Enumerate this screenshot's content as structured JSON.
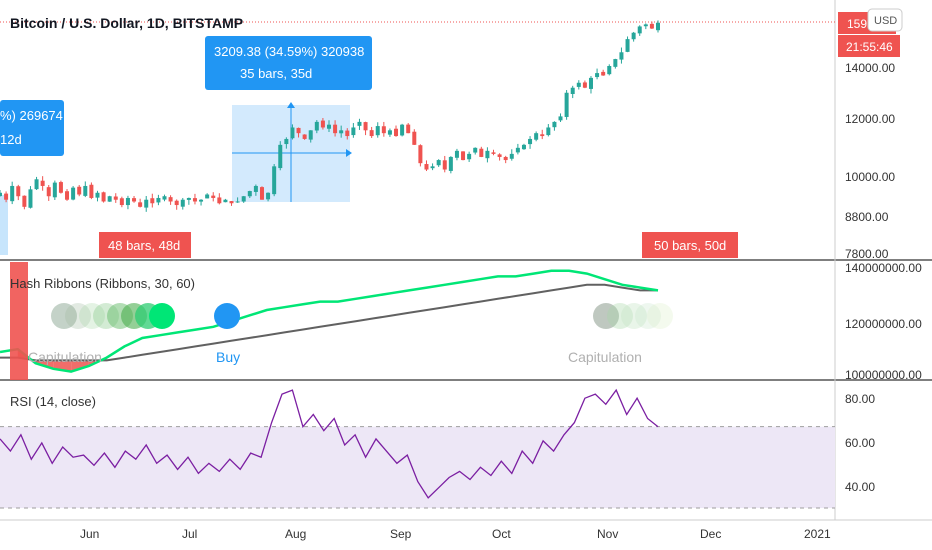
{
  "header": {
    "title": "Bitcoin / U.S. Dollar, 1D, BITSTAMP",
    "currency": "USD"
  },
  "price_badge": {
    "value": "1598",
    "countdown": "21:55:46"
  },
  "colors": {
    "up": "#26a69a",
    "down": "#ef5350",
    "accent": "#2196f3",
    "ribbon_green": "#00e676",
    "ribbon_gray": "#616161",
    "rsi_line": "#7b1fa2",
    "rsi_band": "#ede7f6"
  },
  "measure_boxes": [
    {
      "line1": "3209.38 (34.59%) 320938",
      "line2": "35 bars, 35d"
    },
    {
      "line1": "%) 269674",
      "line2": "12d"
    }
  ],
  "bar_labels": [
    {
      "text": "48 bars, 48d"
    },
    {
      "text": "50 bars, 50d"
    }
  ],
  "hash_ribbons": {
    "title": "Hash Ribbons (Ribbons, 30, 60)",
    "labels": [
      "Capitulation",
      "Buy",
      "Capitulation"
    ],
    "ticks": [
      "140000000.00",
      "120000000.00",
      "100000000.00"
    ],
    "chart_data": {
      "type": "line",
      "series": [
        {
          "values": [
            110,
            111,
            106,
            104,
            103,
            105,
            108,
            112,
            115,
            116,
            117,
            118,
            119,
            121,
            123,
            125,
            126,
            127,
            128,
            128,
            129,
            130,
            131,
            132,
            133,
            134,
            135,
            136,
            137,
            137,
            138,
            139,
            139,
            138,
            136,
            134,
            133,
            132
          ]
        },
        {
          "values": [
            108,
            108,
            107,
            107,
            107,
            107,
            107,
            108,
            109,
            110,
            111,
            112,
            113,
            114,
            115,
            116,
            117,
            118,
            119,
            120,
            121,
            122,
            123,
            124,
            125,
            126,
            127,
            128,
            129,
            130,
            131,
            132,
            133,
            134,
            134,
            133,
            132,
            132
          ]
        }
      ],
      "ylim": [
        100,
        140
      ]
    }
  },
  "rsi": {
    "title": "RSI (14, close)",
    "ticks": [
      "80.00",
      "60.00",
      "40.00"
    ],
    "chart_data": {
      "type": "line",
      "values": [
        64,
        58,
        66,
        54,
        62,
        52,
        60,
        55,
        56,
        51,
        57,
        50,
        58,
        54,
        61,
        52,
        56,
        49,
        55,
        47,
        52,
        48,
        54,
        49,
        57,
        55,
        72,
        86,
        88,
        70,
        76,
        68,
        74,
        61,
        66,
        55,
        64,
        58,
        52,
        56,
        43,
        35,
        40,
        45,
        48,
        44,
        50,
        46,
        53,
        47,
        58,
        52,
        63,
        58,
        66,
        72,
        84,
        86,
        81,
        88,
        76,
        84,
        74,
        70
      ],
      "ylim": [
        30,
        90
      ],
      "band": [
        30,
        70
      ]
    }
  },
  "price_pane": {
    "ticks": [
      "14000.00",
      "12000.00",
      "10000.00",
      "8800.00",
      "7800.00"
    ],
    "chart_data": {
      "type": "candlestick",
      "close": [
        9500,
        9300,
        9700,
        9400,
        9100,
        9600,
        9900,
        9700,
        9400,
        9800,
        9500,
        9300,
        9650,
        9450,
        9700,
        9350,
        9500,
        9250,
        9400,
        9300,
        9150,
        9350,
        9250,
        9100,
        9300,
        9200,
        9350,
        9400,
        9250,
        9150,
        9300,
        9350,
        9250,
        9300,
        9450,
        9350,
        9200,
        9300,
        9200,
        9250,
        9400,
        9550,
        9700,
        9300,
        9500,
        10300,
        11000,
        11200,
        11600,
        11400,
        11200,
        11500,
        11800,
        11600,
        11700,
        11400,
        11500,
        11300,
        11600,
        11800,
        11500,
        11300,
        11650,
        11400,
        11500,
        11300,
        11700,
        11400,
        11000,
        10400,
        10200,
        10300,
        10500,
        10200,
        10600,
        10800,
        10500,
        10700,
        10900,
        10600,
        10800,
        10700,
        10600,
        10500,
        10700,
        10900,
        11000,
        11200,
        11400,
        11300,
        11600,
        11800,
        12000,
        12900,
        13100,
        13300,
        13100,
        13500,
        13700,
        13600,
        14000,
        14300,
        14600,
        15200,
        15500,
        15800,
        15900,
        15700,
        15980
      ]
    }
  },
  "x_axis": {
    "labels": [
      "Jun",
      "Jul",
      "Aug",
      "Sep",
      "Oct",
      "Nov",
      "Dec",
      "2021"
    ]
  }
}
